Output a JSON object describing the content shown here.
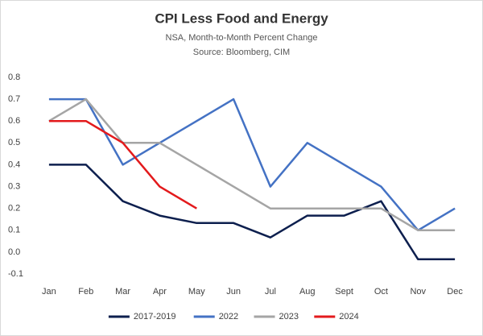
{
  "chart_data": {
    "type": "line",
    "title": "CPI Less Food and Energy",
    "subtitle": "NSA, Month-to-Month Percent Change",
    "source": "Source: Bloomberg, CIM",
    "categories": [
      "Jan",
      "Feb",
      "Mar",
      "Apr",
      "May",
      "Jun",
      "Jul",
      "Aug",
      "Sept",
      "Oct",
      "Nov",
      "Dec"
    ],
    "series": [
      {
        "name": "2017-2019",
        "color": "#0d1f4e",
        "values": [
          0.4,
          0.4,
          0.233,
          0.167,
          0.133,
          0.133,
          0.067,
          0.167,
          0.167,
          0.233,
          -0.033,
          -0.033
        ]
      },
      {
        "name": "2022",
        "color": "#4472c4",
        "values": [
          0.7,
          0.7,
          0.4,
          0.5,
          0.6,
          0.7,
          0.3,
          0.5,
          0.4,
          0.3,
          0.1,
          0.2
        ]
      },
      {
        "name": "2023",
        "color": "#a5a5a5",
        "values": [
          0.6,
          0.7,
          0.5,
          0.5,
          0.4,
          0.3,
          0.2,
          0.2,
          0.2,
          0.2,
          0.1,
          0.1
        ]
      },
      {
        "name": "2024",
        "color": "#e31a1c",
        "values": [
          0.6,
          0.6,
          0.5,
          0.3,
          0.2,
          null,
          null,
          null,
          null,
          null,
          null,
          null
        ]
      }
    ],
    "ylim": [
      -0.1,
      0.8
    ],
    "yticks": [
      -0.1,
      {
        "value": 0,
        "label": "0.0"
      },
      0.1,
      0.2,
      0.3,
      0.4,
      0.5,
      0.6,
      0.7,
      0.8
    ],
    "grid": false,
    "legend": "bottom"
  }
}
